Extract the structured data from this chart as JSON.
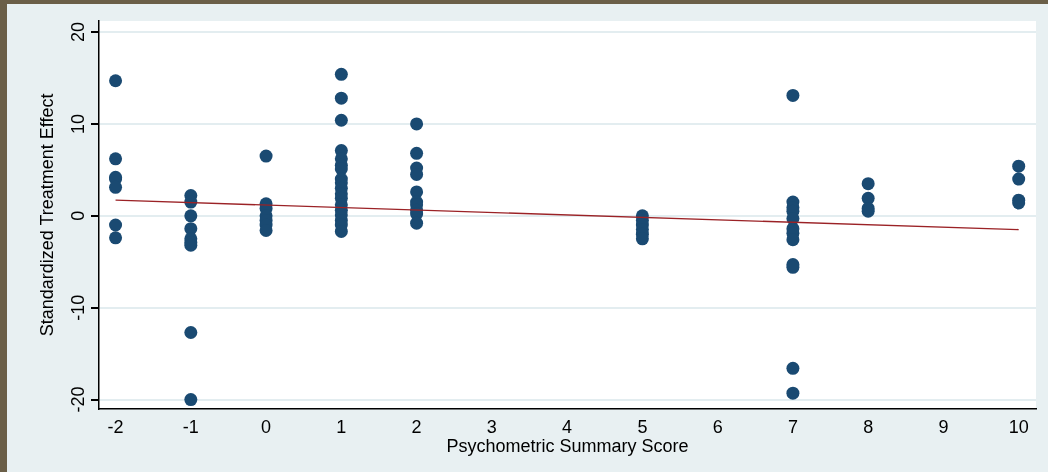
{
  "chart_data": {
    "type": "scatter",
    "xlabel": "Psychometric Summary Score",
    "ylabel": "Standardized Treatment Effect",
    "xlim": [
      -2.22,
      10.23
    ],
    "xticks": [
      -2,
      -1,
      0,
      1,
      2,
      3,
      4,
      5,
      6,
      7,
      8,
      9,
      10
    ],
    "ylim": [
      -21,
      21.2
    ],
    "yticks": [
      -20,
      -10,
      0,
      10,
      20
    ],
    "grid": "y",
    "marker": "circle",
    "legend": false,
    "series": [
      {
        "color": "#1a4a72",
        "x": [
          -2,
          -2,
          -2,
          -2,
          -2,
          -2,
          -2,
          -1,
          -1,
          -1,
          -1,
          -1,
          -1,
          -1,
          -1,
          -1,
          0,
          0,
          0,
          0,
          0,
          0,
          0,
          1,
          1,
          1,
          1,
          1,
          1,
          1,
          1,
          1,
          1,
          1,
          1,
          1,
          1,
          1,
          1,
          1,
          1,
          2,
          2,
          2,
          2,
          2,
          2,
          2,
          2,
          2,
          2,
          5,
          5,
          5,
          5,
          5,
          5,
          7,
          7,
          7,
          7,
          7,
          7,
          7,
          7,
          7,
          7,
          7,
          7,
          8,
          8,
          8,
          8,
          10,
          10,
          10,
          10
        ],
        "values": [
          14.7,
          6.2,
          4.2,
          4.0,
          3.1,
          -1.0,
          -2.4,
          2.2,
          1.5,
          0,
          -1.4,
          -2.5,
          -2.9,
          -3.2,
          -12.7,
          -20.0,
          6.5,
          1.3,
          0.8,
          0,
          -0.5,
          -1.0,
          -1.6,
          15.4,
          12.8,
          10.4,
          7.1,
          6.2,
          5.5,
          5.1,
          4.0,
          3.6,
          3.0,
          2.4,
          1.9,
          1.2,
          0.6,
          0.1,
          -0.5,
          -1.0,
          -1.7,
          10.0,
          6.8,
          5.2,
          4.5,
          2.6,
          1.5,
          1.2,
          0.6,
          0.2,
          -0.8,
          0,
          -0.5,
          -1.0,
          -1.5,
          -2.0,
          -2.5,
          13.1,
          1.5,
          0.9,
          0.5,
          -0.3,
          -1.4,
          -1.9,
          -2.6,
          -5.3,
          -5.6,
          -16.6,
          -19.3,
          3.5,
          1.9,
          0.8,
          0.5,
          5.4,
          4.0,
          1.7,
          1.4
        ]
      },
      {
        "type": "line",
        "color": "#9b2226",
        "marker": "none",
        "x": [
          -2,
          10
        ],
        "values": [
          1.7,
          -1.5
        ]
      }
    ]
  }
}
